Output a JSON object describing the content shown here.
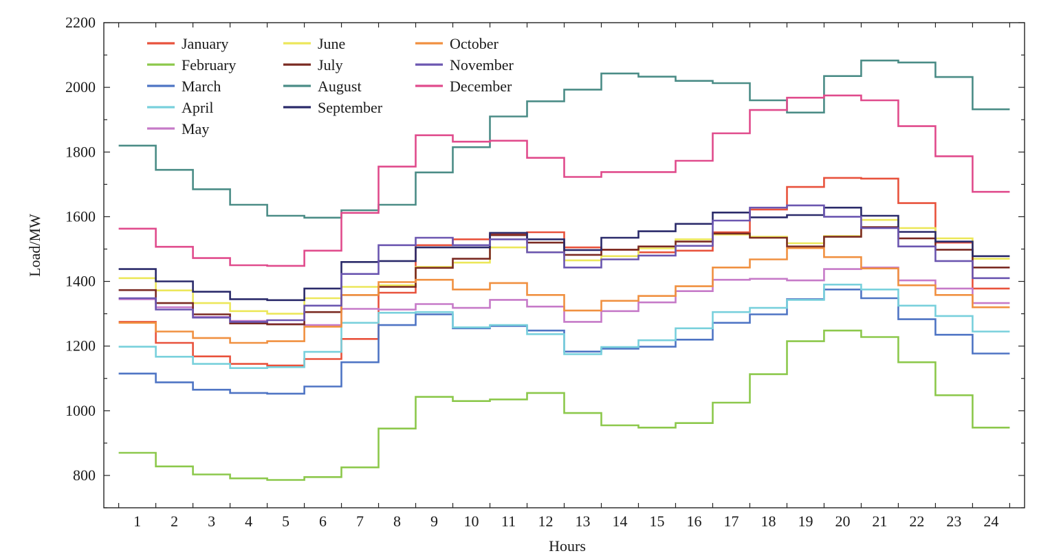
{
  "chart_data": {
    "type": "line",
    "step": true,
    "xlabel": "Hours",
    "ylabel": "Load/MW",
    "x": [
      1,
      2,
      3,
      4,
      5,
      6,
      7,
      8,
      9,
      10,
      11,
      12,
      13,
      14,
      15,
      16,
      17,
      18,
      19,
      20,
      21,
      22,
      23,
      24
    ],
    "xlim": [
      0.1,
      24.9
    ],
    "ylim": [
      700,
      2200
    ],
    "yticks": [
      800,
      1000,
      1200,
      1400,
      1600,
      1800,
      2000,
      2200
    ],
    "grid": false,
    "legend_position": "top-left",
    "series": [
      {
        "name": "January",
        "color": "#e8523c",
        "values": [
          1275,
          1210,
          1168,
          1145,
          1140,
          1160,
          1222,
          1365,
          1512,
          1530,
          1548,
          1552,
          1505,
          1498,
          1490,
          1495,
          1552,
          1622,
          1692,
          1720,
          1718,
          1642,
          1520,
          1378
        ]
      },
      {
        "name": "February",
        "color": "#8cc84b",
        "values": [
          870,
          828,
          803,
          791,
          786,
          795,
          825,
          945,
          1043,
          1030,
          1035,
          1055,
          993,
          955,
          948,
          962,
          1025,
          1113,
          1215,
          1248,
          1228,
          1150,
          1048,
          948
        ]
      },
      {
        "name": "March",
        "color": "#4e74c4",
        "values": [
          1115,
          1088,
          1065,
          1055,
          1053,
          1075,
          1150,
          1265,
          1298,
          1255,
          1262,
          1248,
          1183,
          1192,
          1198,
          1220,
          1272,
          1298,
          1345,
          1375,
          1348,
          1283,
          1235,
          1177
        ]
      },
      {
        "name": "April",
        "color": "#78d0dc",
        "values": [
          1198,
          1167,
          1145,
          1132,
          1135,
          1182,
          1272,
          1303,
          1305,
          1258,
          1265,
          1237,
          1175,
          1197,
          1218,
          1255,
          1305,
          1318,
          1343,
          1390,
          1375,
          1325,
          1293,
          1245
        ]
      },
      {
        "name": "May",
        "color": "#c67ac8",
        "values": [
          1345,
          1320,
          1290,
          1278,
          1268,
          1265,
          1315,
          1313,
          1330,
          1318,
          1343,
          1322,
          1275,
          1308,
          1335,
          1370,
          1405,
          1408,
          1403,
          1438,
          1443,
          1403,
          1378,
          1333
        ]
      },
      {
        "name": "June",
        "color": "#ece75a",
        "values": [
          1410,
          1372,
          1333,
          1308,
          1300,
          1348,
          1383,
          1388,
          1445,
          1458,
          1505,
          1490,
          1465,
          1478,
          1502,
          1530,
          1545,
          1538,
          1518,
          1540,
          1590,
          1565,
          1533,
          1470
        ]
      },
      {
        "name": "July",
        "color": "#7a2a22",
        "values": [
          1373,
          1333,
          1298,
          1270,
          1267,
          1305,
          1358,
          1383,
          1442,
          1470,
          1543,
          1520,
          1482,
          1498,
          1508,
          1523,
          1548,
          1535,
          1508,
          1538,
          1568,
          1533,
          1498,
          1443
        ]
      },
      {
        "name": "August",
        "color": "#4a8c86",
        "values": [
          1820,
          1745,
          1685,
          1637,
          1603,
          1597,
          1620,
          1637,
          1737,
          1815,
          1910,
          1957,
          1993,
          2043,
          2033,
          2020,
          2013,
          1960,
          1922,
          2035,
          2083,
          2077,
          2032,
          1932
        ]
      },
      {
        "name": "September",
        "color": "#2a2a6a",
        "values": [
          1438,
          1400,
          1368,
          1345,
          1342,
          1378,
          1460,
          1463,
          1505,
          1505,
          1550,
          1530,
          1497,
          1535,
          1555,
          1578,
          1613,
          1598,
          1605,
          1628,
          1603,
          1553,
          1523,
          1478
        ]
      },
      {
        "name": "October",
        "color": "#f09040",
        "values": [
          1272,
          1245,
          1225,
          1210,
          1215,
          1260,
          1358,
          1398,
          1405,
          1375,
          1395,
          1358,
          1310,
          1340,
          1355,
          1385,
          1443,
          1468,
          1503,
          1475,
          1440,
          1388,
          1358,
          1320
        ]
      },
      {
        "name": "November",
        "color": "#6b56b0",
        "values": [
          1348,
          1313,
          1288,
          1275,
          1280,
          1325,
          1423,
          1512,
          1535,
          1512,
          1530,
          1490,
          1443,
          1468,
          1480,
          1510,
          1588,
          1628,
          1635,
          1600,
          1565,
          1508,
          1463,
          1410
        ]
      },
      {
        "name": "December",
        "color": "#e04b8c",
        "values": [
          1563,
          1507,
          1472,
          1450,
          1448,
          1495,
          1612,
          1755,
          1852,
          1832,
          1835,
          1782,
          1723,
          1738,
          1738,
          1773,
          1858,
          1930,
          1968,
          1975,
          1960,
          1880,
          1787,
          1677
        ]
      }
    ]
  }
}
